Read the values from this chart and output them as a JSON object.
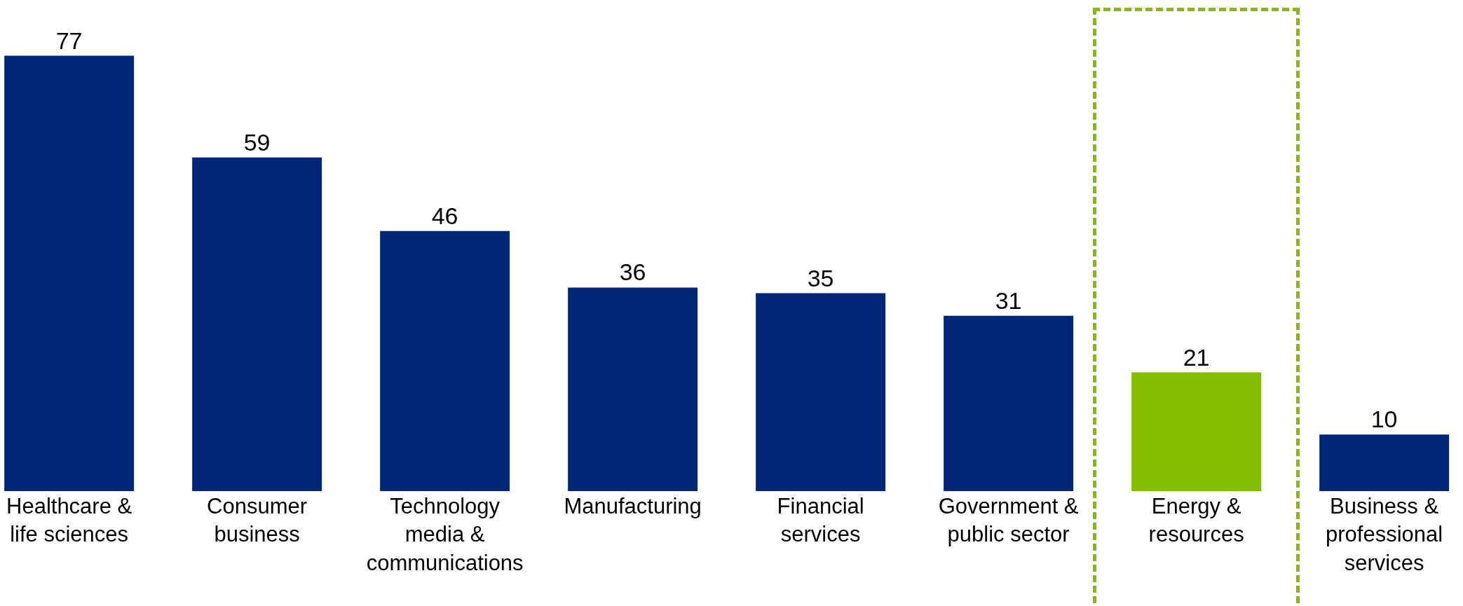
{
  "chart_data": {
    "type": "bar",
    "categories": [
      "Healthcare & life sciences",
      "Consumer business",
      "Technology media & communications",
      "Manufacturing",
      "Financial services",
      "Government & public sector",
      "Energy & resources",
      "Business & professional services"
    ],
    "values": [
      77,
      59,
      46,
      36,
      35,
      31,
      21,
      10
    ],
    "colors": [
      "#002776",
      "#002776",
      "#002776",
      "#002776",
      "#002776",
      "#002776",
      "#84bd00",
      "#002776"
    ],
    "data_labels": true
  }
}
